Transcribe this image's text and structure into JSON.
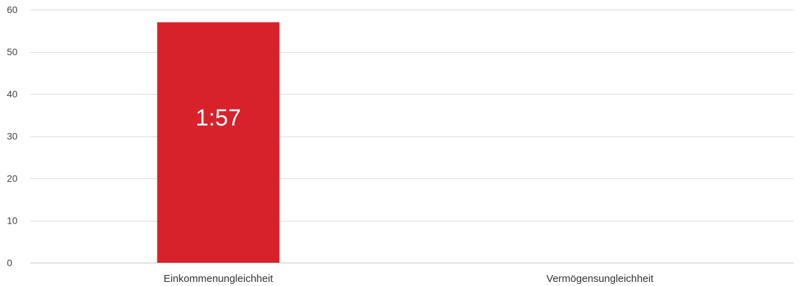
{
  "chart_data": {
    "type": "bar",
    "categories": [
      "Einkommenungleichheit",
      "Vermögensungleichheit"
    ],
    "values": [
      57,
      null
    ],
    "data_labels": [
      "1:57",
      ""
    ],
    "ylim": [
      0,
      60
    ],
    "yticks": [
      0,
      10,
      20,
      30,
      40,
      50,
      60
    ],
    "ytick_labels": [
      "0",
      "10",
      "20",
      "30",
      "40",
      "50",
      "60"
    ],
    "grid": true,
    "legend": "none",
    "colors": {
      "bar": "#d7222c"
    }
  }
}
